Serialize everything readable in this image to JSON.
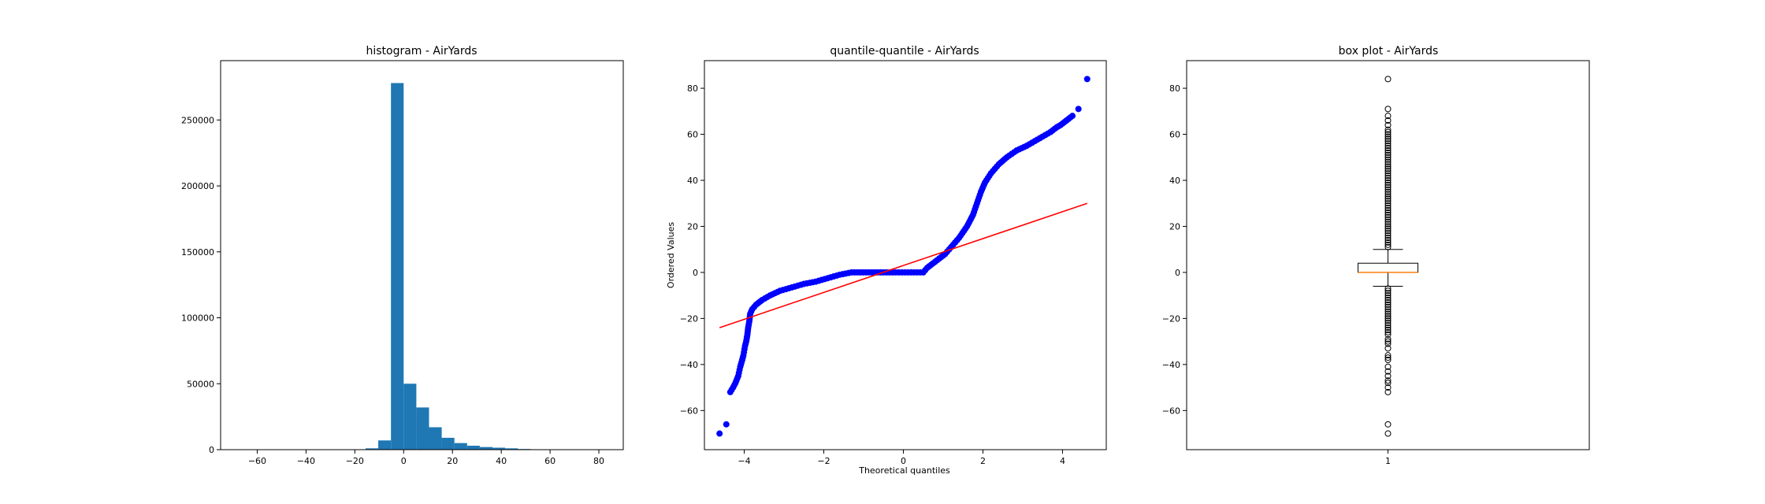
{
  "chart_data": [
    {
      "type": "bar",
      "title": "histogram - AirYards",
      "xlabel": "",
      "ylabel": "",
      "xlim": [
        -75,
        90
      ],
      "ylim": [
        0,
        295000
      ],
      "xticks": [
        "−60",
        "−40",
        "−20",
        "0",
        "20",
        "40",
        "60",
        "80"
      ],
      "yticks": [
        "0",
        "50000",
        "100000",
        "150000",
        "200000",
        "250000"
      ],
      "bin_width": 5.2,
      "bin_starts": [
        -15.6,
        -10.4,
        -5.2,
        0,
        5.2,
        10.4,
        15.6,
        20.8,
        26.0,
        31.2,
        36.4,
        41.6,
        46.8,
        52.0,
        57.2
      ],
      "values": [
        1000,
        7000,
        278000,
        50000,
        32000,
        17000,
        9000,
        5000,
        3000,
        2000,
        1500,
        1000,
        500,
        300,
        200
      ],
      "color": "#1f77b4"
    },
    {
      "type": "scatter",
      "title": "quantile-quantile - AirYards",
      "xlabel": "Theoretical quantiles",
      "ylabel": "Ordered Values",
      "xlim": [
        -5,
        5.1
      ],
      "ylim": [
        -77,
        92
      ],
      "xticks": [
        "−4",
        "−2",
        "0",
        "2",
        "4"
      ],
      "yticks": [
        "−60",
        "−40",
        "−20",
        "0",
        "20",
        "40",
        "60",
        "80"
      ],
      "points": [
        [
          -4.62,
          -70
        ],
        [
          -4.45,
          -66
        ],
        [
          -4.35,
          -52
        ],
        [
          -4.28,
          -50
        ],
        [
          -4.22,
          -48
        ],
        [
          -4.15,
          -45
        ],
        [
          -4.1,
          -41
        ],
        [
          -4.05,
          -38
        ],
        [
          -4.02,
          -36
        ],
        [
          -3.98,
          -32
        ],
        [
          -3.95,
          -30
        ],
        [
          -3.92,
          -27
        ],
        [
          -3.9,
          -24
        ],
        [
          -3.87,
          -21
        ],
        [
          -3.85,
          -18
        ],
        [
          -3.8,
          -16
        ],
        [
          -3.7,
          -14
        ],
        [
          -3.55,
          -12
        ],
        [
          -3.35,
          -10
        ],
        [
          -3.1,
          -8
        ],
        [
          -2.8,
          -6.5
        ],
        [
          -2.5,
          -5
        ],
        [
          -2.2,
          -4
        ],
        [
          -1.9,
          -2.5
        ],
        [
          -1.6,
          -1
        ],
        [
          -1.3,
          0
        ],
        [
          -0.5,
          0
        ],
        [
          0.5,
          0
        ],
        [
          0.6,
          2
        ],
        [
          0.75,
          4
        ],
        [
          0.9,
          6
        ],
        [
          1.05,
          8
        ],
        [
          1.2,
          11
        ],
        [
          1.4,
          15
        ],
        [
          1.6,
          20
        ],
        [
          1.75,
          25
        ],
        [
          1.85,
          30
        ],
        [
          1.95,
          35
        ],
        [
          2.05,
          39
        ],
        [
          2.2,
          43
        ],
        [
          2.4,
          47
        ],
        [
          2.6,
          50
        ],
        [
          2.85,
          53
        ],
        [
          3.1,
          55
        ],
        [
          3.3,
          57
        ],
        [
          3.5,
          59
        ],
        [
          3.7,
          61
        ],
        [
          3.85,
          63
        ],
        [
          3.95,
          64
        ],
        [
          4.1,
          66
        ],
        [
          4.25,
          68
        ],
        [
          4.4,
          71
        ],
        [
          4.62,
          84
        ]
      ],
      "fit_line": [
        [
          -4.62,
          -24
        ],
        [
          4.62,
          30
        ]
      ],
      "point_color": "#0000ff",
      "line_color": "#ff0000"
    },
    {
      "type": "box",
      "title": "box plot - AirYards",
      "xlabel": "",
      "ylabel": "",
      "xlim": [
        0.5,
        1.5
      ],
      "ylim": [
        -77,
        92
      ],
      "xticks": [
        "1"
      ],
      "yticks": [
        "−60",
        "−40",
        "−20",
        "0",
        "20",
        "40",
        "60",
        "80"
      ],
      "median": 0,
      "q1": 0,
      "q3": 4,
      "whisker_low": -6,
      "whisker_high": 10,
      "fliers": [
        -70,
        -66,
        -52,
        -50,
        -48,
        -47,
        -45,
        -43,
        -41,
        -38,
        -37,
        -36,
        -33,
        -31,
        -30,
        -29,
        -27,
        -26,
        -25,
        -24,
        -23,
        -22,
        -21,
        -20,
        -19,
        -18,
        -17,
        -16,
        -15,
        -14,
        -13,
        -12,
        -11,
        -10,
        -9,
        -8,
        -7,
        11,
        12,
        13,
        14,
        15,
        16,
        17,
        18,
        19,
        20,
        21,
        22,
        23,
        24,
        25,
        26,
        27,
        28,
        29,
        30,
        31,
        32,
        33,
        34,
        35,
        36,
        37,
        38,
        39,
        40,
        41,
        42,
        43,
        44,
        45,
        46,
        47,
        48,
        49,
        50,
        51,
        52,
        53,
        54,
        55,
        56,
        57,
        58,
        59,
        60,
        61,
        62,
        64,
        66,
        68,
        71,
        84
      ],
      "median_color": "#ff7f0e"
    }
  ]
}
